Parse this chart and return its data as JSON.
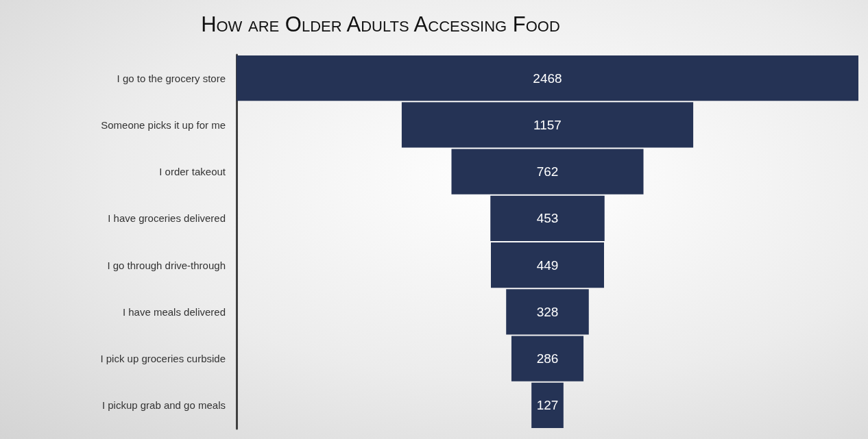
{
  "chart_data": {
    "type": "other",
    "title": "How are Older Adults Accessing Food",
    "categories": [
      "I go to the grocery store",
      "Someone picks it up for me",
      "I order takeout",
      "I have groceries delivered",
      "I go through drive-through",
      "I have meals delivered",
      "I pick up groceries curbside",
      "I pickup grab and go meals"
    ],
    "values": [
      2468,
      1157,
      762,
      453,
      449,
      328,
      286,
      127
    ],
    "color": "#253355",
    "data_labels": true
  }
}
